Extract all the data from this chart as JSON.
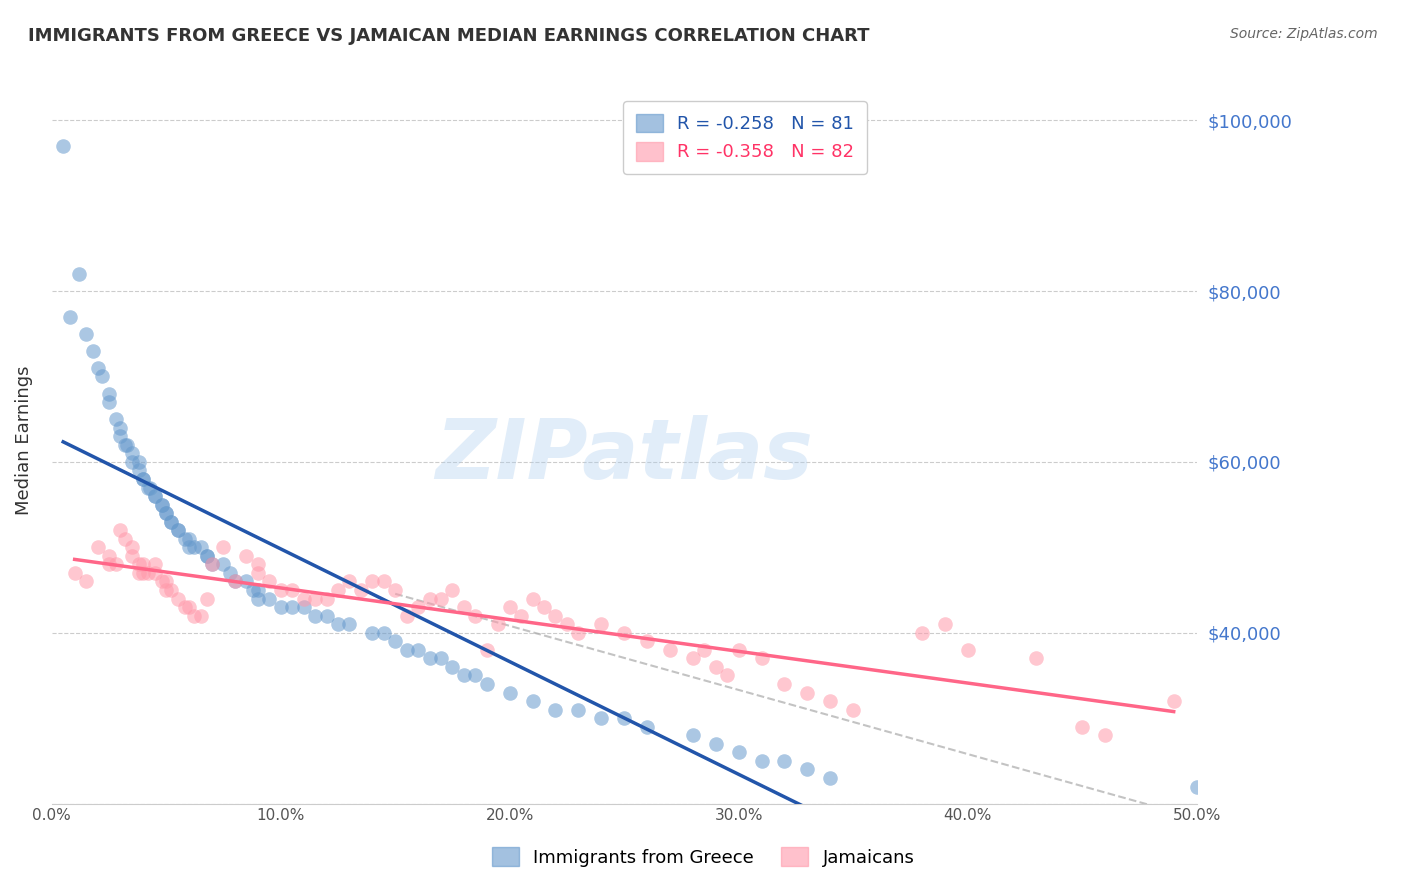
{
  "title": "IMMIGRANTS FROM GREECE VS JAMAICAN MEDIAN EARNINGS CORRELATION CHART",
  "source": "Source: ZipAtlas.com",
  "xlabel": "",
  "ylabel": "Median Earnings",
  "xlim": [
    0.0,
    0.5
  ],
  "ylim": [
    20000,
    105000
  ],
  "yticks": [
    20000,
    40000,
    60000,
    80000,
    100000
  ],
  "ytick_labels": [
    "",
    "$40,000",
    "$60,000",
    "$80,000",
    "$100,000"
  ],
  "xticks": [
    0.0,
    0.1,
    0.2,
    0.3,
    0.4,
    0.5
  ],
  "xtick_labels": [
    "0.0%",
    "10.0%",
    "20.0%",
    "30.0%",
    "40.0%",
    "50.0%"
  ],
  "blue_color": "#6699CC",
  "pink_color": "#FF99AA",
  "blue_line_color": "#2255AA",
  "pink_line_color": "#FF6688",
  "watermark": "ZIPatlas",
  "watermark_color": "#AACCEE",
  "R_blue": -0.258,
  "N_blue": 81,
  "R_pink": -0.358,
  "N_pink": 82,
  "legend_label_blue": "Immigrants from Greece",
  "legend_label_pink": "Jamaicans",
  "blue_scatter_x": [
    0.005,
    0.012,
    0.008,
    0.015,
    0.018,
    0.02,
    0.022,
    0.025,
    0.025,
    0.028,
    0.03,
    0.03,
    0.032,
    0.033,
    0.035,
    0.035,
    0.038,
    0.038,
    0.04,
    0.04,
    0.042,
    0.043,
    0.045,
    0.045,
    0.048,
    0.048,
    0.05,
    0.05,
    0.052,
    0.052,
    0.055,
    0.055,
    0.058,
    0.06,
    0.06,
    0.062,
    0.065,
    0.068,
    0.068,
    0.07,
    0.075,
    0.078,
    0.08,
    0.085,
    0.088,
    0.09,
    0.09,
    0.095,
    0.1,
    0.105,
    0.11,
    0.115,
    0.12,
    0.125,
    0.13,
    0.14,
    0.145,
    0.15,
    0.155,
    0.16,
    0.165,
    0.17,
    0.175,
    0.18,
    0.185,
    0.19,
    0.2,
    0.21,
    0.22,
    0.23,
    0.24,
    0.25,
    0.26,
    0.28,
    0.29,
    0.3,
    0.31,
    0.32,
    0.33,
    0.34,
    0.5
  ],
  "blue_scatter_y": [
    97000,
    82000,
    77000,
    75000,
    73000,
    71000,
    70000,
    68000,
    67000,
    65000,
    64000,
    63000,
    62000,
    62000,
    61000,
    60000,
    60000,
    59000,
    58000,
    58000,
    57000,
    57000,
    56000,
    56000,
    55000,
    55000,
    54000,
    54000,
    53000,
    53000,
    52000,
    52000,
    51000,
    51000,
    50000,
    50000,
    50000,
    49000,
    49000,
    48000,
    48000,
    47000,
    46000,
    46000,
    45000,
    45000,
    44000,
    44000,
    43000,
    43000,
    43000,
    42000,
    42000,
    41000,
    41000,
    40000,
    40000,
    39000,
    38000,
    38000,
    37000,
    37000,
    36000,
    35000,
    35000,
    34000,
    33000,
    32000,
    31000,
    31000,
    30000,
    30000,
    29000,
    28000,
    27000,
    26000,
    25000,
    25000,
    24000,
    23000,
    22000
  ],
  "pink_scatter_x": [
    0.01,
    0.015,
    0.02,
    0.025,
    0.025,
    0.028,
    0.03,
    0.032,
    0.035,
    0.035,
    0.038,
    0.038,
    0.04,
    0.04,
    0.042,
    0.045,
    0.045,
    0.048,
    0.05,
    0.05,
    0.052,
    0.055,
    0.058,
    0.06,
    0.062,
    0.065,
    0.068,
    0.07,
    0.075,
    0.08,
    0.085,
    0.09,
    0.09,
    0.095,
    0.1,
    0.105,
    0.11,
    0.115,
    0.12,
    0.125,
    0.13,
    0.135,
    0.14,
    0.145,
    0.15,
    0.155,
    0.16,
    0.165,
    0.17,
    0.175,
    0.18,
    0.185,
    0.19,
    0.195,
    0.2,
    0.205,
    0.21,
    0.215,
    0.22,
    0.225,
    0.23,
    0.24,
    0.25,
    0.26,
    0.27,
    0.28,
    0.285,
    0.29,
    0.295,
    0.3,
    0.31,
    0.32,
    0.33,
    0.34,
    0.35,
    0.38,
    0.39,
    0.4,
    0.43,
    0.45,
    0.46,
    0.49
  ],
  "pink_scatter_y": [
    47000,
    46000,
    50000,
    49000,
    48000,
    48000,
    52000,
    51000,
    50000,
    49000,
    48000,
    47000,
    48000,
    47000,
    47000,
    48000,
    47000,
    46000,
    46000,
    45000,
    45000,
    44000,
    43000,
    43000,
    42000,
    42000,
    44000,
    48000,
    50000,
    46000,
    49000,
    48000,
    47000,
    46000,
    45000,
    45000,
    44000,
    44000,
    44000,
    45000,
    46000,
    45000,
    46000,
    46000,
    45000,
    42000,
    43000,
    44000,
    44000,
    45000,
    43000,
    42000,
    38000,
    41000,
    43000,
    42000,
    44000,
    43000,
    42000,
    41000,
    40000,
    41000,
    40000,
    39000,
    38000,
    37000,
    38000,
    36000,
    35000,
    38000,
    37000,
    34000,
    33000,
    32000,
    31000,
    40000,
    41000,
    38000,
    37000,
    29000,
    28000,
    32000
  ]
}
